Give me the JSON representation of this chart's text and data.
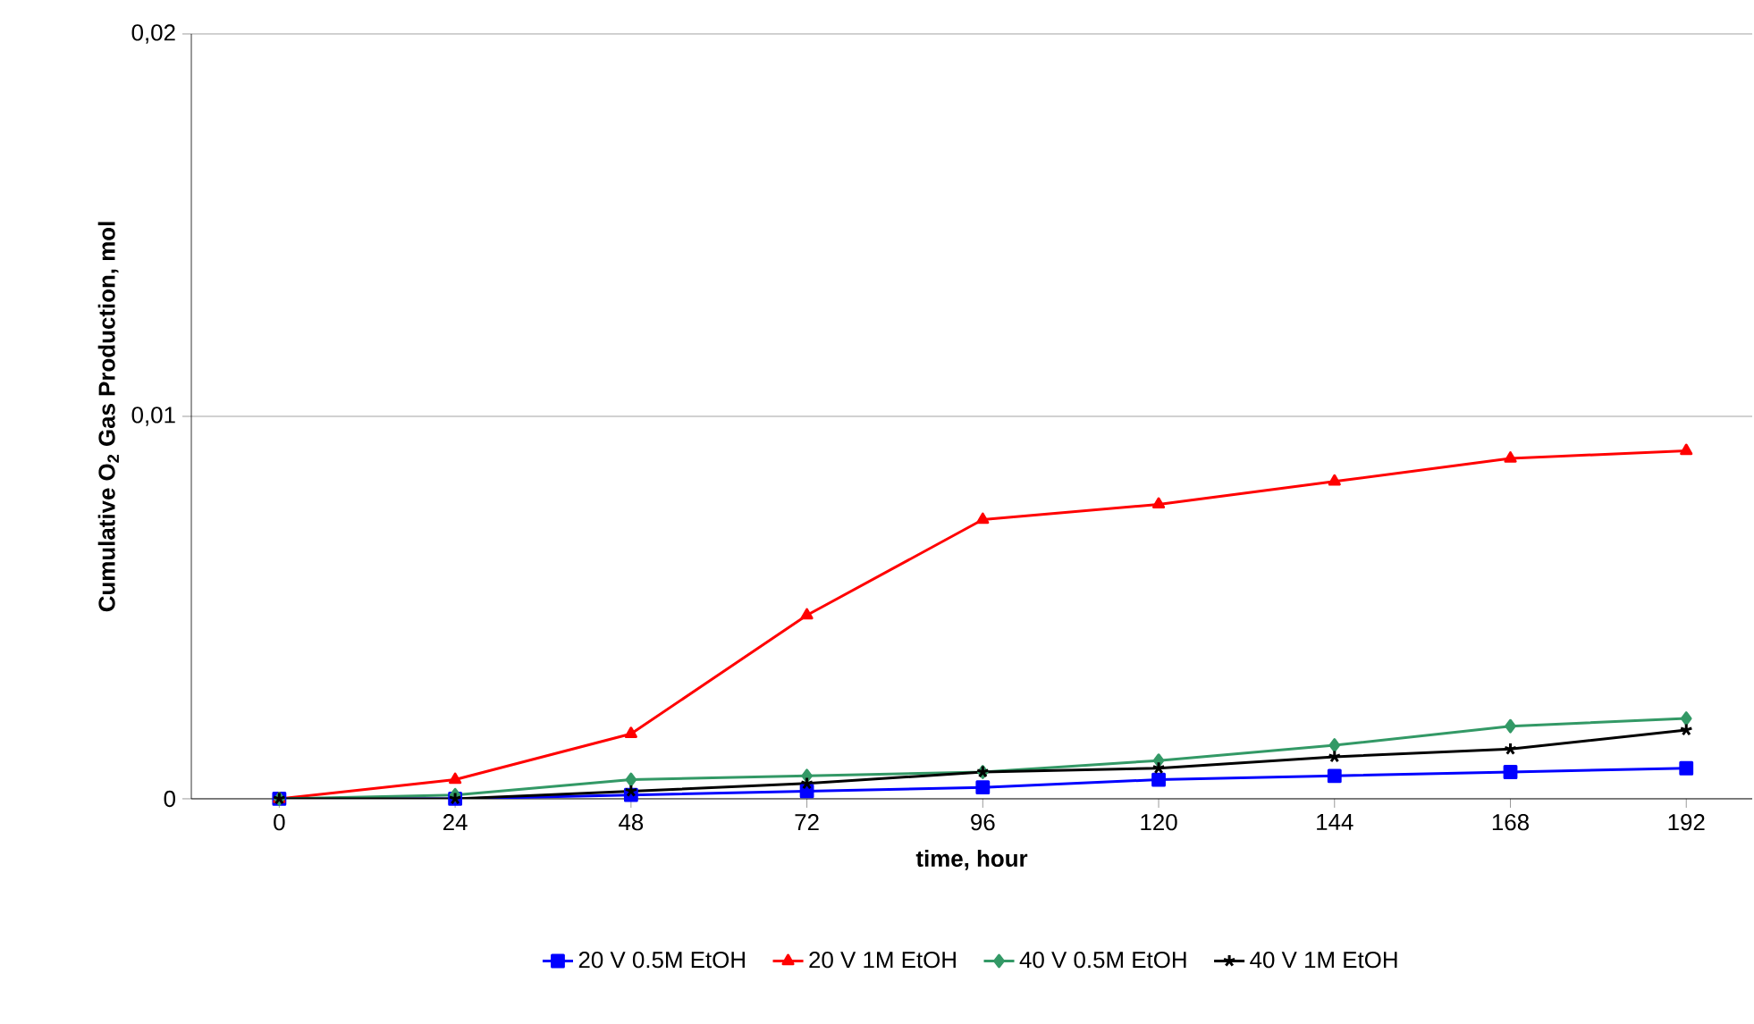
{
  "chart_data": {
    "type": "line",
    "xlabel": "time, hour",
    "ylabel": "Cumulative O$_{2}$ Gas Production, mol",
    "x": [
      0,
      24,
      48,
      72,
      96,
      120,
      144,
      168,
      192
    ],
    "xlim": [
      -12,
      201
    ],
    "xticks": [
      0,
      24,
      48,
      72,
      96,
      120,
      144,
      168,
      192
    ],
    "ylim": [
      0,
      0.02
    ],
    "yticks": [
      {
        "value": 0,
        "label": "0"
      },
      {
        "value": 0.01,
        "label": "0,01"
      },
      {
        "value": 0.02,
        "label": "0,02"
      }
    ],
    "grid": "y",
    "legend": "bottom",
    "line_style": "solid",
    "series": [
      {
        "name": "20 V 0.5M EtOH",
        "color": "#0000ff",
        "marker": "square",
        "values": [
          0,
          0,
          0.0001,
          0.0002,
          0.0003,
          0.0005,
          0.0006,
          0.0007,
          0.0008
        ]
      },
      {
        "name": "20 V 1M EtOH",
        "color": "#ff0000",
        "marker": "triangle",
        "values": [
          0,
          0.0005,
          0.0017,
          0.0048,
          0.0073,
          0.0077,
          0.0083,
          0.0089,
          0.0091
        ]
      },
      {
        "name": "40 V 0.5M EtOH",
        "color": "#339966",
        "marker": "diamond",
        "values": [
          0,
          0.0001,
          0.0005,
          0.0006,
          0.0007,
          0.001,
          0.0014,
          0.0019,
          0.0021
        ]
      },
      {
        "name": "40 V 1M EtOH",
        "color": "#000000",
        "marker": "cross",
        "values": [
          0,
          0,
          0.0002,
          0.0004,
          0.0007,
          0.0008,
          0.0011,
          0.0013,
          0.0018
        ]
      }
    ]
  }
}
